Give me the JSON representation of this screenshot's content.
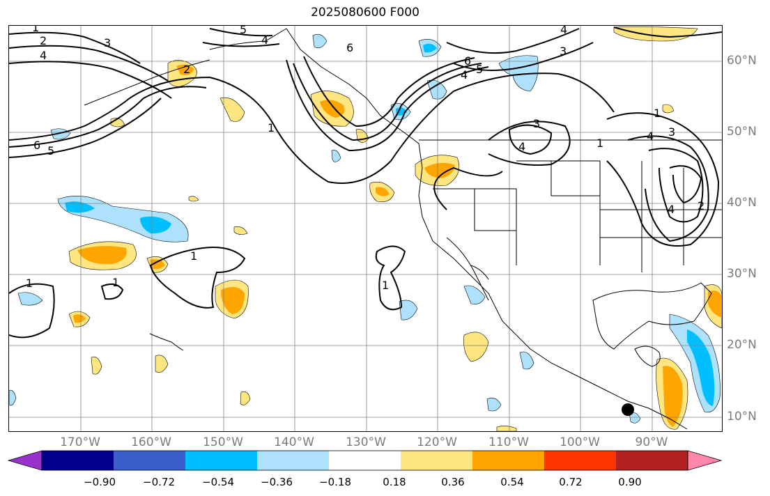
{
  "title": "2025080600 F000",
  "lon_labels": [
    "170°W",
    "160°W",
    "150°W",
    "140°W",
    "130°W",
    "120°W",
    "110°W",
    "100°W",
    "90°W"
  ],
  "lat_labels": [
    "60°N",
    "50°N",
    "40°N",
    "30°N",
    "20°N",
    "10°N"
  ],
  "colorbar": {
    "ticks": [
      "−0.90",
      "−0.72",
      "−0.54",
      "−0.36",
      "−0.18",
      "0.18",
      "0.36",
      "0.54",
      "0.72",
      "0.90"
    ],
    "colors": [
      "#9932cc",
      "#00008b",
      "#3a5fcd",
      "#00bfff",
      "#aee1fb",
      "#ffffff",
      "#ffe680",
      "#ffa500",
      "#ff3300",
      "#b22222",
      "#ff88aa"
    ]
  },
  "contour_labels": [
    "1",
    "2",
    "3",
    "4",
    "5",
    "6"
  ],
  "colors": {
    "contour": "#000000",
    "grid": "#808080",
    "land": "#000000"
  }
}
